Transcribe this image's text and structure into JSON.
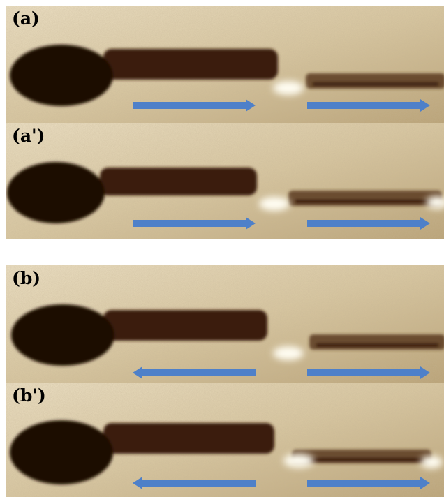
{
  "colors": {
    "background": "#d8c7a1",
    "grain_light": "#ece0c4",
    "grain_dark": "#b9a276",
    "domain_dark": "#3a1d0e",
    "domain_core": "#1e0d05",
    "bright_spot": "#fffdf2",
    "arrow": "#4e80c9"
  },
  "panels": [
    {
      "label": "(a)",
      "arrow_left_direction": "right",
      "arrow_right_direction": "right"
    },
    {
      "label": "(a')",
      "arrow_left_direction": "right",
      "arrow_right_direction": "right"
    },
    {
      "label": "(b)",
      "arrow_left_direction": "left",
      "arrow_right_direction": "right"
    },
    {
      "label": "(b')",
      "arrow_left_direction": "left",
      "arrow_right_direction": "right"
    }
  ]
}
